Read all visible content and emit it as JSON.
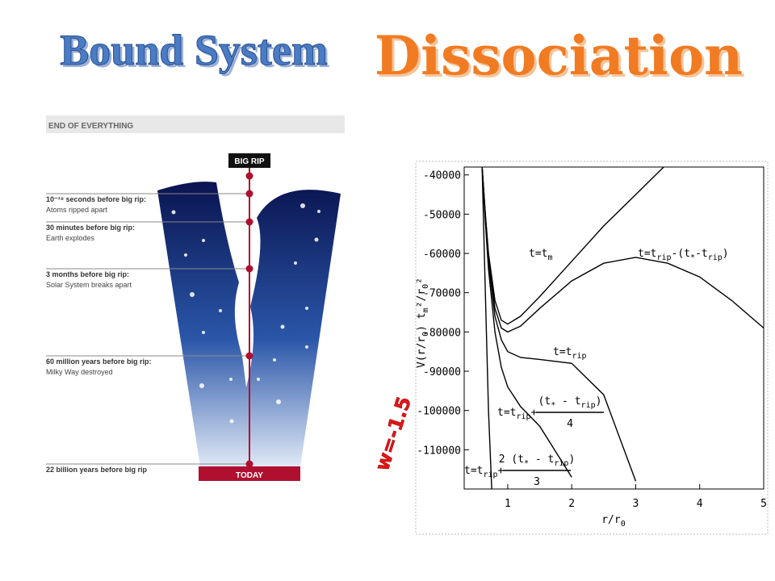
{
  "header": {
    "left_title": "Bound System",
    "right_title": "Dissociation"
  },
  "illustration": {
    "heading": "END OF EVERYTHING",
    "top_label": "BIG RIP",
    "bottom_label": "TODAY",
    "events": [
      {
        "title": "10⁻¹⁹ seconds before big rip:",
        "detail": "Atoms ripped apart"
      },
      {
        "title": "30 minutes before big rip:",
        "detail": "Earth explodes"
      },
      {
        "title": "3 months before big rip:",
        "detail": "Solar System breaks apart"
      },
      {
        "title": "60 million years before big rip:",
        "detail": "Milky Way destroyed"
      },
      {
        "title": "22 billion years before big rip"
      }
    ]
  },
  "side_label": "w=-1.5",
  "chart_data": {
    "type": "line",
    "xlabel": [
      "r/r",
      "0"
    ],
    "ylabel": [
      "V(r/r",
      "0",
      ") t",
      "m",
      "²/r",
      "0",
      "²"
    ],
    "x": [
      0.6,
      0.65,
      0.7,
      0.8,
      0.9,
      1.0,
      1.2,
      1.5,
      2.0,
      2.5,
      3.0,
      3.5,
      4.0,
      4.5,
      5.0
    ],
    "xlim": [
      0.32,
      5
    ],
    "ylim": [
      -120000,
      -38000
    ],
    "xticks": [
      1,
      2,
      3,
      4,
      5
    ],
    "yticks": [
      -40000,
      -50000,
      -60000,
      -70000,
      -80000,
      -90000,
      -100000,
      -110000
    ],
    "series": [
      {
        "color": "#000000",
        "values": [
          -38000,
          -50000,
          -60000,
          -72000,
          -77000,
          -78000,
          -76000,
          -71000,
          -62000,
          -53000,
          -45000,
          -37000,
          null,
          null,
          null
        ]
      },
      {
        "color": "#000000",
        "values": [
          -38000,
          -50000,
          -61000,
          -74000,
          -79000,
          -80000,
          -78500,
          -74000,
          -67000,
          -62500,
          -61000,
          -62500,
          -66000,
          -72000,
          -79000
        ]
      },
      {
        "color": "#000000",
        "values": [
          -38000,
          -51000,
          -62000,
          -76000,
          -82000,
          -85000,
          -86500,
          -87000,
          -88000,
          -96000,
          -118000,
          null,
          null,
          null,
          null
        ]
      },
      {
        "color": "#000000",
        "values": [
          -38000,
          -52000,
          -64000,
          -80000,
          -89000,
          -94000,
          -99000,
          -104000,
          -117000,
          null,
          null,
          null,
          null,
          null,
          null
        ]
      },
      {
        "color": "#000000",
        "values": [
          -38000,
          -70000,
          -100000,
          -140000,
          null,
          null,
          null,
          null,
          null,
          null,
          null,
          null,
          null,
          null,
          null
        ]
      }
    ],
    "annotations": [
      {
        "parts": [
          "t=t",
          "m"
        ]
      },
      {
        "parts": [
          "t=t",
          "rip",
          "-(t",
          "*",
          "-t",
          "rip",
          ")"
        ]
      },
      {
        "parts": [
          "t=t",
          "rip"
        ]
      },
      {
        "parts": [
          "t=t",
          "rip",
          "+"
        ],
        "numerator": [
          "(t",
          "*",
          " - t",
          "rip",
          ")"
        ],
        "denominator": "4"
      },
      {
        "parts": [
          "t=t",
          "rip",
          "+"
        ],
        "numerator": [
          "2 (t",
          "*",
          " - t",
          "rip",
          ")"
        ],
        "denominator": "3"
      }
    ]
  }
}
